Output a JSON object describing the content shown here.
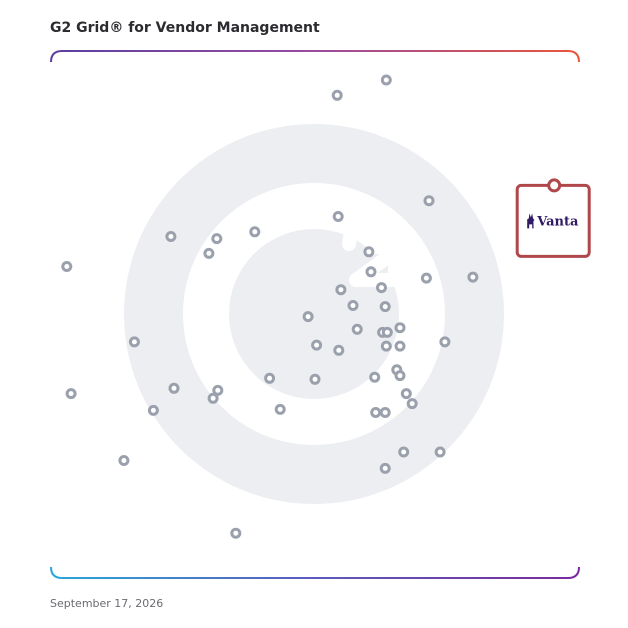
{
  "chart_data": {
    "type": "scatter",
    "title": "G2 Grid® for Vendor Management",
    "date": "September 17, 2026",
    "xlim": [
      0,
      100
    ],
    "ylim": [
      0,
      100
    ],
    "grid": "quadrants",
    "colors": {
      "frame_top_left": "#5b3fa0",
      "frame_top_right": "#e8553a",
      "frame_bottom_left": "#2aa6dd",
      "frame_bottom_right": "#7a2aa0",
      "points": "#9aa0ac",
      "watermark": "#eceef1",
      "highlight": "#b0474a",
      "logo": "#2f1a63"
    },
    "points": [
      {
        "x": 63.5,
        "y": 94.5
      },
      {
        "x": 54.2,
        "y": 91.6
      },
      {
        "x": 71.6,
        "y": 71.6
      },
      {
        "x": 54.4,
        "y": 68.6
      },
      {
        "x": 22.7,
        "y": 64.8
      },
      {
        "x": 31.4,
        "y": 64.4
      },
      {
        "x": 38.6,
        "y": 65.7
      },
      {
        "x": 29.9,
        "y": 61.6
      },
      {
        "x": 3.0,
        "y": 59.1
      },
      {
        "x": 60.2,
        "y": 61.9
      },
      {
        "x": 60.6,
        "y": 58.1
      },
      {
        "x": 71.1,
        "y": 56.9
      },
      {
        "x": 79.9,
        "y": 57.1
      },
      {
        "x": 62.6,
        "y": 55.1
      },
      {
        "x": 54.9,
        "y": 54.7
      },
      {
        "x": 57.2,
        "y": 51.7
      },
      {
        "x": 63.3,
        "y": 51.5
      },
      {
        "x": 48.7,
        "y": 49.6
      },
      {
        "x": 58.0,
        "y": 47.2
      },
      {
        "x": 62.8,
        "y": 46.6
      },
      {
        "x": 63.7,
        "y": 46.6
      },
      {
        "x": 66.1,
        "y": 47.5
      },
      {
        "x": 15.8,
        "y": 44.8
      },
      {
        "x": 50.3,
        "y": 44.2
      },
      {
        "x": 54.5,
        "y": 43.2
      },
      {
        "x": 63.5,
        "y": 44.0
      },
      {
        "x": 66.1,
        "y": 44.0
      },
      {
        "x": 74.6,
        "y": 44.8
      },
      {
        "x": 65.5,
        "y": 39.5
      },
      {
        "x": 66.1,
        "y": 38.4
      },
      {
        "x": 61.3,
        "y": 38.1
      },
      {
        "x": 41.4,
        "y": 37.9
      },
      {
        "x": 50.0,
        "y": 37.7
      },
      {
        "x": 23.3,
        "y": 36.0
      },
      {
        "x": 31.6,
        "y": 35.6
      },
      {
        "x": 30.7,
        "y": 34.1
      },
      {
        "x": 3.8,
        "y": 35.0
      },
      {
        "x": 67.3,
        "y": 35.0
      },
      {
        "x": 68.4,
        "y": 33.1
      },
      {
        "x": 19.4,
        "y": 31.8
      },
      {
        "x": 43.4,
        "y": 32.0
      },
      {
        "x": 61.5,
        "y": 31.4
      },
      {
        "x": 63.3,
        "y": 31.4
      },
      {
        "x": 66.8,
        "y": 23.9
      },
      {
        "x": 73.7,
        "y": 23.9
      },
      {
        "x": 13.8,
        "y": 22.3
      },
      {
        "x": 63.3,
        "y": 20.8
      },
      {
        "x": 35.0,
        "y": 8.5
      }
    ],
    "highlight": {
      "name": "Vanta",
      "logo_text": "Vanta",
      "logo_icon": "vanta-llama-icon",
      "x": 95.3,
      "y": 74.5
    }
  }
}
